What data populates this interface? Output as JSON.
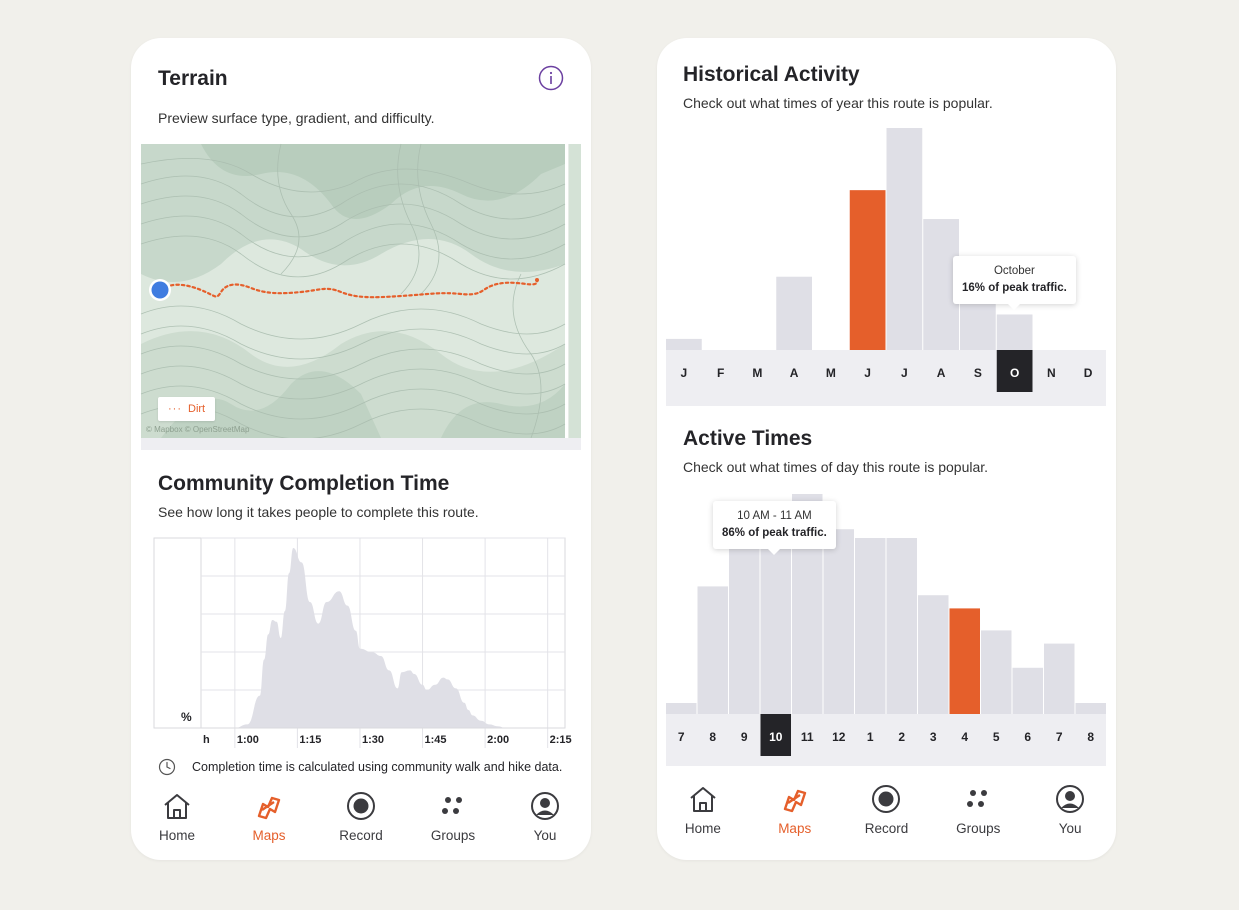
{
  "terrain": {
    "title": "Terrain",
    "subtitle": "Preview surface type, gradient, and difficulty.",
    "legend_label": "Dirt",
    "legend_dots": "···",
    "map_attribution": "© Mapbox © OpenStreetMap"
  },
  "completion": {
    "title": "Community Completion Time",
    "subtitle": "See how long it takes people to complete this route.",
    "note": "Completion time is calculated using community walk and hike data."
  },
  "colors": {
    "accent": "#e55f2b",
    "bar": "#dfdfe6",
    "selected": "#242428",
    "axis_bg": "#eeeef2"
  },
  "nav": {
    "home": "Home",
    "maps": "Maps",
    "record": "Record",
    "groups": "Groups",
    "you": "You"
  },
  "historical": {
    "title": "Historical Activity",
    "subtitle": "Check out what times of year this route is popular.",
    "tooltip_title": "October",
    "tooltip_value": "16% of peak traffic."
  },
  "active": {
    "title": "Active Times",
    "subtitle": "Check out what times of day this route is popular.",
    "tooltip_title": "10 AM - 11 AM",
    "tooltip_value": "86% of peak traffic."
  },
  "chart_data": [
    {
      "type": "area",
      "title": "Community Completion Time",
      "xlabel": "h",
      "ylabel": "%",
      "tick_labels": [
        "1:00",
        "1:15",
        "1:30",
        "1:45",
        "2:00",
        "2:15"
      ],
      "x_minutes": [
        60,
        63,
        66,
        67,
        68,
        69,
        70,
        71,
        72,
        73,
        74,
        76,
        78,
        80,
        82,
        85,
        87,
        89,
        90,
        93,
        95,
        97,
        99,
        100,
        102,
        103,
        105,
        106,
        108,
        110,
        111,
        113,
        115,
        116,
        117,
        119,
        121,
        123,
        125,
        127,
        129,
        132
      ],
      "y": [
        0,
        2,
        18,
        38,
        52,
        60,
        59,
        50,
        65,
        86,
        100,
        92,
        70,
        58,
        70,
        76,
        68,
        54,
        44,
        42,
        40,
        32,
        22,
        31,
        32,
        30,
        24,
        21,
        24,
        28,
        27,
        22,
        14,
        10,
        7,
        4,
        2,
        1,
        0,
        0,
        0,
        0
      ],
      "ylim": [
        0,
        100
      ],
      "grid": true
    },
    {
      "type": "bar",
      "title": "Historical Activity",
      "categories": [
        "J",
        "F",
        "M",
        "A",
        "M",
        "J",
        "J",
        "A",
        "S",
        "O",
        "N",
        "D"
      ],
      "values": [
        5,
        0,
        0,
        33,
        0,
        72,
        100,
        59,
        24,
        16,
        0,
        0
      ],
      "highlight_index": 5,
      "selected_index": 9,
      "ylim": [
        0,
        100
      ]
    },
    {
      "type": "bar",
      "title": "Active Times",
      "categories": [
        "7",
        "8",
        "9",
        "10",
        "11",
        "12",
        "1",
        "2",
        "3",
        "4",
        "5",
        "6",
        "7",
        "8"
      ],
      "values": [
        5,
        58,
        75,
        86,
        100,
        84,
        80,
        80,
        54,
        48,
        38,
        21,
        32,
        5
      ],
      "highlight_index": 9,
      "selected_index": 3,
      "ylim": [
        0,
        100
      ]
    }
  ]
}
